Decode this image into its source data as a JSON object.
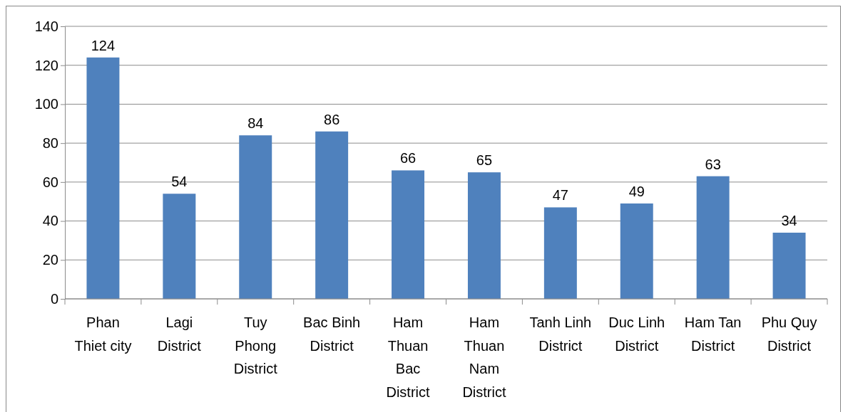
{
  "chart_data": {
    "type": "bar",
    "categories": [
      "Phan Thiet city",
      "Lagi District",
      "Tuy Phong District",
      "Bac Binh District",
      "Ham Thuan Bac District",
      "Ham Thuan Nam District",
      "Tanh Linh District",
      "Duc Linh District",
      "Ham Tan District",
      "Phu Quy District"
    ],
    "values": [
      124,
      54,
      84,
      86,
      66,
      65,
      47,
      49,
      63,
      34
    ],
    "color": "#4f81bd",
    "ylim": [
      0,
      140
    ],
    "yticks": [
      0,
      20,
      40,
      60,
      80,
      100,
      120,
      140
    ],
    "grid": "y",
    "data_labels": true
  }
}
